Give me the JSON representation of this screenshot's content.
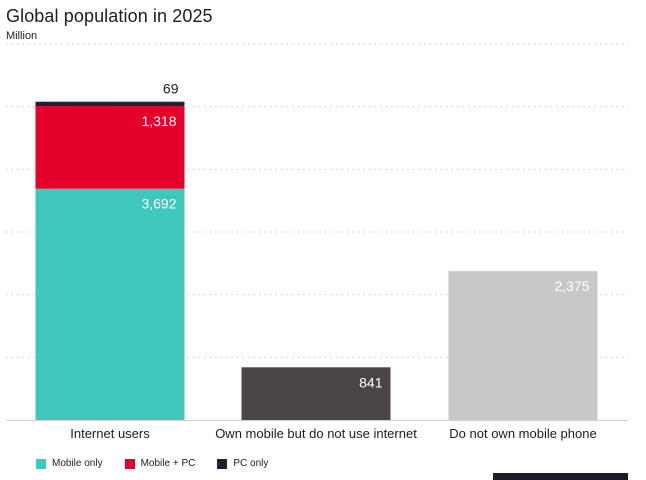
{
  "chart_data": {
    "type": "bar",
    "title": "Global population in 2025",
    "subtitle": "Million",
    "categories": [
      "Internet users",
      "Own mobile but do not use internet",
      "Do not own mobile phone"
    ],
    "stacked": true,
    "series": [
      {
        "name": "Mobile only",
        "color": "#3ec7ba",
        "values": [
          3692,
          null,
          null
        ]
      },
      {
        "name": "Mobile + PC",
        "color": "#e4002b",
        "values": [
          1318,
          null,
          null
        ]
      },
      {
        "name": "PC only",
        "color": "#1c2230",
        "values": [
          69,
          null,
          null
        ]
      }
    ],
    "other_bars": [
      {
        "category": "Own mobile but do not use internet",
        "value": 841,
        "color": "#4a4446"
      },
      {
        "category": "Do not own mobile phone",
        "value": 2375,
        "color": "#c8c8c8"
      }
    ],
    "ylim": [
      0,
      6000
    ],
    "grid": true,
    "legend_position": "bottom-left"
  }
}
